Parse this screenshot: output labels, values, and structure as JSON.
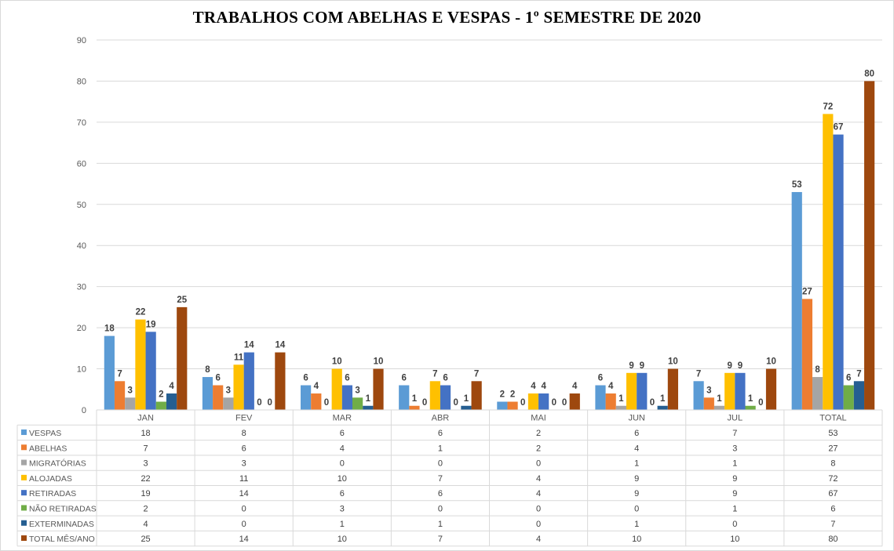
{
  "chart_data": {
    "type": "bar",
    "title": "TRABALHOS COM ABELHAS E VESPAS - 1º SEMESTRE  DE 2020",
    "categories": [
      "JAN",
      "FEV",
      "MAR",
      "ABR",
      "MAI",
      "JUN",
      "JUL",
      "TOTAL"
    ],
    "ylim": [
      0,
      90
    ],
    "yticks": [
      0,
      10,
      20,
      30,
      40,
      50,
      60,
      70,
      80,
      90
    ],
    "grid": true,
    "legend": "data-table-below",
    "series": [
      {
        "name": "VESPAS",
        "color": "#5b9bd5",
        "values": [
          18,
          8,
          6,
          6,
          2,
          6,
          7,
          53
        ]
      },
      {
        "name": "ABELHAS",
        "color": "#ed7d31",
        "values": [
          7,
          6,
          4,
          1,
          2,
          4,
          3,
          27
        ]
      },
      {
        "name": "MIGRATÓRIAS",
        "color": "#a5a5a5",
        "values": [
          3,
          3,
          0,
          0,
          0,
          1,
          1,
          8
        ]
      },
      {
        "name": "ALOJADAS",
        "color": "#ffc000",
        "values": [
          22,
          11,
          10,
          7,
          4,
          9,
          9,
          72
        ]
      },
      {
        "name": "RETIRADAS",
        "color": "#4472c4",
        "values": [
          19,
          14,
          6,
          6,
          4,
          9,
          9,
          67
        ]
      },
      {
        "name": "NÃO RETIRADAS",
        "color": "#70ad47",
        "values": [
          2,
          0,
          3,
          0,
          0,
          0,
          1,
          6
        ]
      },
      {
        "name": "EXTERMINADAS",
        "color": "#255e91",
        "values": [
          4,
          0,
          1,
          1,
          0,
          1,
          0,
          7
        ]
      },
      {
        "name": "TOTAL MÊS/ANO",
        "color": "#9e480e",
        "values": [
          25,
          14,
          10,
          7,
          4,
          10,
          10,
          80
        ]
      }
    ]
  }
}
